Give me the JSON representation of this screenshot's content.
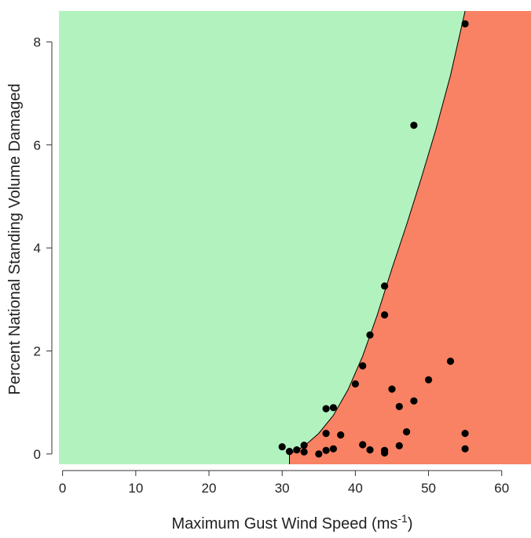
{
  "chart_data": {
    "type": "scatter",
    "title": "",
    "xlabel": "Maximum Gust Wind Speed (ms",
    "xlabel_superscript": "-1",
    "xlabel_suffix": ")",
    "ylabel": "Percent National Standing Volume Damaged",
    "xlim": [
      -0.5,
      64
    ],
    "ylim": [
      -0.2,
      8.6
    ],
    "xticks": [
      0,
      10,
      20,
      30,
      40,
      50,
      60
    ],
    "yticks": [
      0,
      2,
      4,
      6,
      8
    ],
    "region_colors": {
      "upper": "#b2f2bf",
      "lower": "#f88263"
    },
    "point_color": "#000000",
    "boundary_curve": {
      "x": [
        31,
        33,
        35,
        37,
        39,
        41,
        43,
        45,
        47,
        49,
        51,
        53,
        55
      ],
      "y": [
        0,
        0.15,
        0.4,
        0.75,
        1.25,
        1.9,
        2.7,
        3.6,
        4.45,
        5.35,
        6.3,
        7.35,
        8.6
      ]
    },
    "points": [
      {
        "x": 30,
        "y": 0.14
      },
      {
        "x": 31,
        "y": 0.05
      },
      {
        "x": 32,
        "y": 0.08
      },
      {
        "x": 33,
        "y": 0.04
      },
      {
        "x": 33,
        "y": 0.17
      },
      {
        "x": 35,
        "y": 0.0
      },
      {
        "x": 36,
        "y": 0.07
      },
      {
        "x": 36,
        "y": 0.4
      },
      {
        "x": 36,
        "y": 0.88
      },
      {
        "x": 37,
        "y": 0.9
      },
      {
        "x": 37,
        "y": 0.1
      },
      {
        "x": 38,
        "y": 0.37
      },
      {
        "x": 40,
        "y": 1.36
      },
      {
        "x": 41,
        "y": 1.71
      },
      {
        "x": 41,
        "y": 0.18
      },
      {
        "x": 42,
        "y": 2.31
      },
      {
        "x": 42,
        "y": 0.08
      },
      {
        "x": 44,
        "y": 3.26
      },
      {
        "x": 44,
        "y": 2.7
      },
      {
        "x": 44,
        "y": 0.07
      },
      {
        "x": 44,
        "y": 0.02
      },
      {
        "x": 45,
        "y": 1.26
      },
      {
        "x": 46,
        "y": 0.92
      },
      {
        "x": 46,
        "y": 0.16
      },
      {
        "x": 47,
        "y": 0.43
      },
      {
        "x": 48,
        "y": 6.38
      },
      {
        "x": 48,
        "y": 1.03
      },
      {
        "x": 50,
        "y": 1.44
      },
      {
        "x": 53,
        "y": 1.8
      },
      {
        "x": 55,
        "y": 8.35
      },
      {
        "x": 55,
        "y": 0.4
      },
      {
        "x": 55,
        "y": 0.1
      }
    ]
  }
}
